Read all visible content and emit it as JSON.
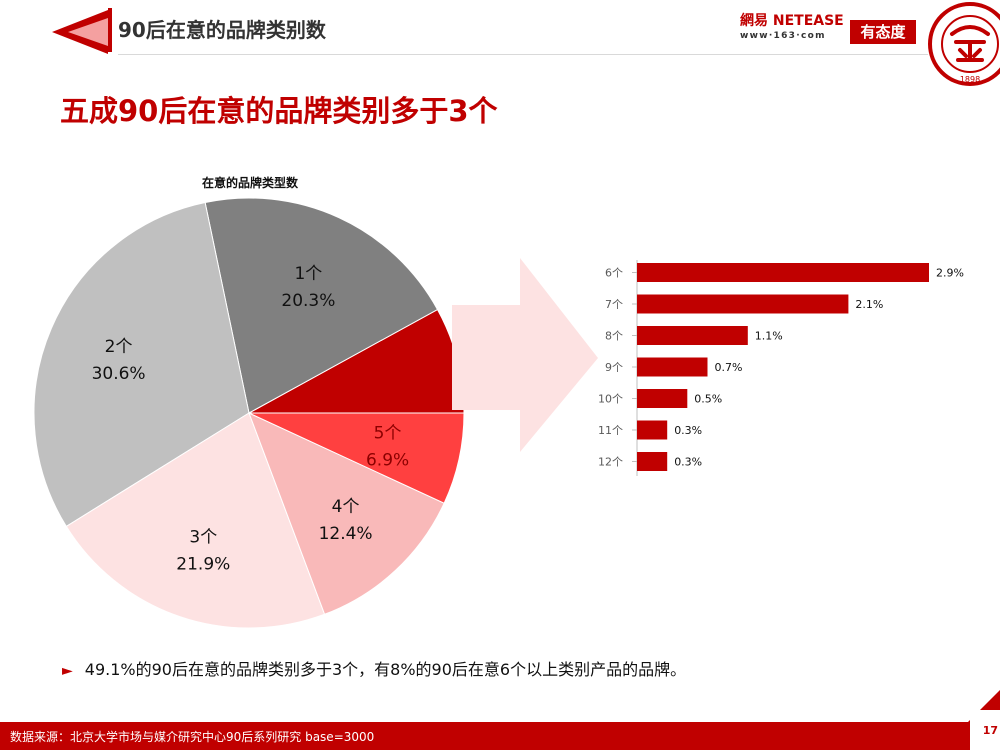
{
  "header": {
    "title": "90后在意的品牌类别数",
    "netease_name": "網易 NETEASE",
    "netease_url": "www·163·com",
    "partner_logo": "有态度",
    "seal_year": "1898"
  },
  "headline": "五成90后在意的品牌类别多于3个",
  "summary": "49.1%的90后在意的品牌类别多于3个，有8%的90后在意6个以上类别产品的品牌。",
  "footer": {
    "source": "数据来源：北京大学市场与媒介研究中心90后系列研究 base=3000",
    "page": "17"
  },
  "chart_data": [
    {
      "type": "pie",
      "title": "在意的品牌类型数",
      "categories": [
        "6个及以上",
        "1个",
        "2个",
        "3个",
        "4个",
        "5个"
      ],
      "values": [
        8.0,
        20.3,
        30.6,
        21.9,
        12.4,
        6.9
      ],
      "labels": [
        "8.0%",
        "20.3%",
        "30.6%",
        "21.9%",
        "12.4%",
        "6.9%"
      ],
      "colors": [
        "#c00000",
        "#808080",
        "#c0c0c0",
        "#fde2e2",
        "#f9b9b9",
        "#ff4040"
      ],
      "label_colors": [
        "#111111",
        "#111111",
        "#111111",
        "#111111",
        "#111111",
        "#8b0000"
      ]
    },
    {
      "type": "bar",
      "orientation": "horizontal",
      "categories": [
        "6个",
        "7个",
        "8个",
        "9个",
        "10个",
        "11个",
        "12个"
      ],
      "values": [
        2.9,
        2.1,
        1.1,
        0.7,
        0.5,
        0.3,
        0.3
      ],
      "labels": [
        "2.9%",
        "2.1%",
        "1.1%",
        "0.7%",
        "0.5%",
        "0.3%",
        "0.3%"
      ],
      "color": "#c00000"
    }
  ]
}
